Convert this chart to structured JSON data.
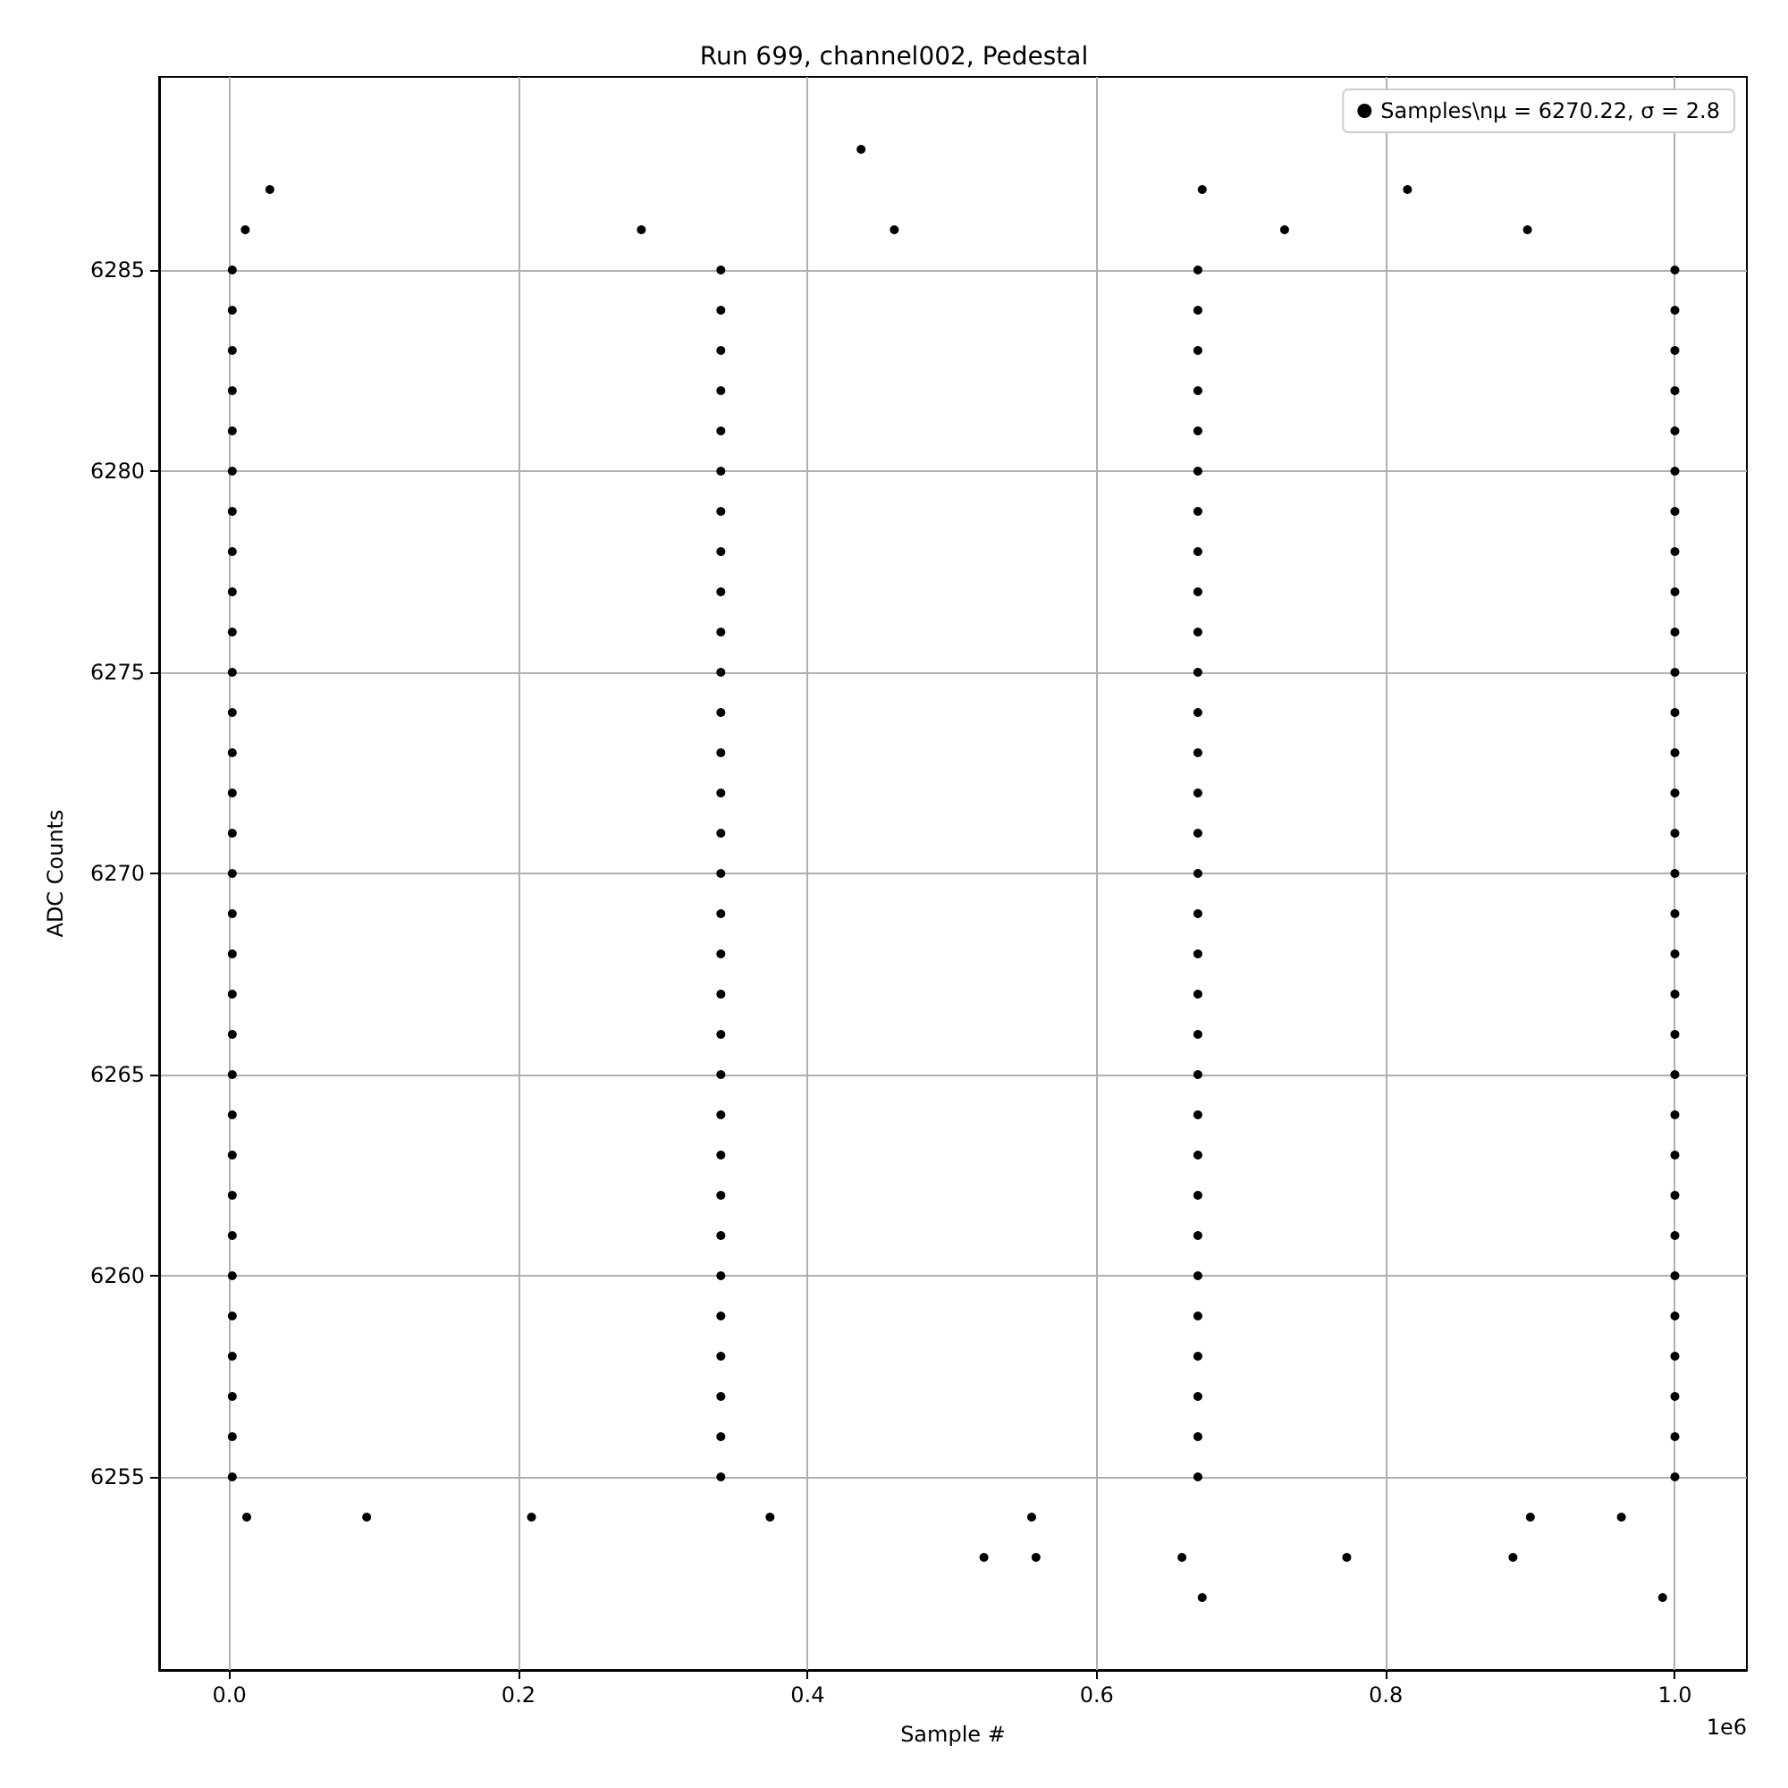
{
  "chart_data": {
    "type": "scatter",
    "title": "Run 699, channel002, Pedestal",
    "xlabel": "Sample #",
    "ylabel": "ADC Counts",
    "annotations": [
      "1e6"
    ],
    "xlim": [
      -0.0486,
      1.0498
    ],
    "xticks": [
      {
        "value": 0,
        "label": "0.0"
      },
      0.2,
      0.4,
      0.6,
      0.8,
      {
        "value": 1,
        "label": "1.0"
      }
    ],
    "ylim": [
      6250.2,
      6289.8
    ],
    "yticks": [
      6255,
      6260,
      6265,
      6270,
      6275,
      6280,
      6285
    ],
    "grid": true,
    "legend": "top right",
    "marker": "circle",
    "series": [
      {
        "name": "Samples\\nμ = 6270.22, σ = 2.8",
        "color": "#000000",
        "x": [
          0.002,
          0.34,
          0.67,
          1.0,
          0.002,
          0.34,
          0.67,
          1.0,
          0.002,
          0.34,
          0.67,
          1.0,
          0.002,
          0.34,
          0.67,
          1.0,
          0.002,
          0.34,
          0.67,
          1.0,
          0.002,
          0.34,
          0.67,
          1.0,
          0.002,
          0.34,
          0.67,
          1.0,
          0.002,
          0.34,
          0.67,
          1.0,
          0.002,
          0.34,
          0.67,
          1.0,
          0.002,
          0.34,
          0.67,
          1.0,
          0.002,
          0.34,
          0.67,
          1.0,
          0.002,
          0.34,
          0.67,
          1.0,
          0.002,
          0.34,
          0.67,
          1.0,
          0.002,
          0.34,
          0.67,
          1.0,
          0.002,
          0.34,
          0.67,
          1.0,
          0.002,
          0.34,
          0.67,
          1.0,
          0.002,
          0.34,
          0.67,
          1.0,
          0.002,
          0.34,
          0.67,
          1.0,
          0.002,
          0.34,
          0.67,
          1.0,
          0.002,
          0.34,
          0.67,
          1.0,
          0.002,
          0.34,
          0.67,
          1.0,
          0.002,
          0.34,
          0.67,
          1.0,
          0.002,
          0.34,
          0.67,
          1.0,
          0.002,
          0.34,
          0.67,
          1.0,
          0.002,
          0.34,
          0.67,
          1.0,
          0.002,
          0.34,
          0.67,
          1.0,
          0.002,
          0.34,
          0.67,
          1.0,
          0.002,
          0.34,
          0.67,
          1.0,
          0.002,
          0.34,
          0.67,
          1.0,
          0.002,
          0.34,
          0.67,
          1.0,
          0.002,
          0.34,
          0.67,
          1.0,
          0.437,
          0.028,
          0.673,
          0.815,
          0.673,
          0.9915,
          0.522,
          0.558,
          0.659,
          0.773,
          0.888,
          0.012,
          0.095,
          0.209,
          0.374,
          0.555,
          0.9,
          0.963,
          0.011,
          0.285,
          0.46,
          0.898,
          0.73
        ],
        "values": [
          6255,
          6255,
          6255,
          6255,
          6256,
          6256,
          6256,
          6256,
          6257,
          6257,
          6257,
          6257,
          6258,
          6258,
          6258,
          6258,
          6259,
          6259,
          6259,
          6259,
          6260,
          6260,
          6260,
          6260,
          6261,
          6261,
          6261,
          6261,
          6262,
          6262,
          6262,
          6262,
          6263,
          6263,
          6263,
          6263,
          6264,
          6264,
          6264,
          6264,
          6265,
          6265,
          6265,
          6265,
          6266,
          6266,
          6266,
          6266,
          6267,
          6267,
          6267,
          6267,
          6268,
          6268,
          6268,
          6268,
          6269,
          6269,
          6269,
          6269,
          6270,
          6270,
          6270,
          6270,
          6271,
          6271,
          6271,
          6271,
          6272,
          6272,
          6272,
          6272,
          6273,
          6273,
          6273,
          6273,
          6274,
          6274,
          6274,
          6274,
          6275,
          6275,
          6275,
          6275,
          6276,
          6276,
          6276,
          6276,
          6277,
          6277,
          6277,
          6277,
          6278,
          6278,
          6278,
          6278,
          6279,
          6279,
          6279,
          6279,
          6280,
          6280,
          6280,
          6280,
          6281,
          6281,
          6281,
          6281,
          6282,
          6282,
          6282,
          6282,
          6283,
          6283,
          6283,
          6283,
          6284,
          6284,
          6284,
          6284,
          6285,
          6285,
          6285,
          6285,
          6288,
          6287,
          6287,
          6287,
          6252,
          6252,
          6253,
          6253,
          6253,
          6253,
          6253,
          6254,
          6254,
          6254,
          6254,
          6254,
          6254,
          6254,
          6286,
          6286,
          6286,
          6286,
          6286
        ]
      }
    ]
  }
}
